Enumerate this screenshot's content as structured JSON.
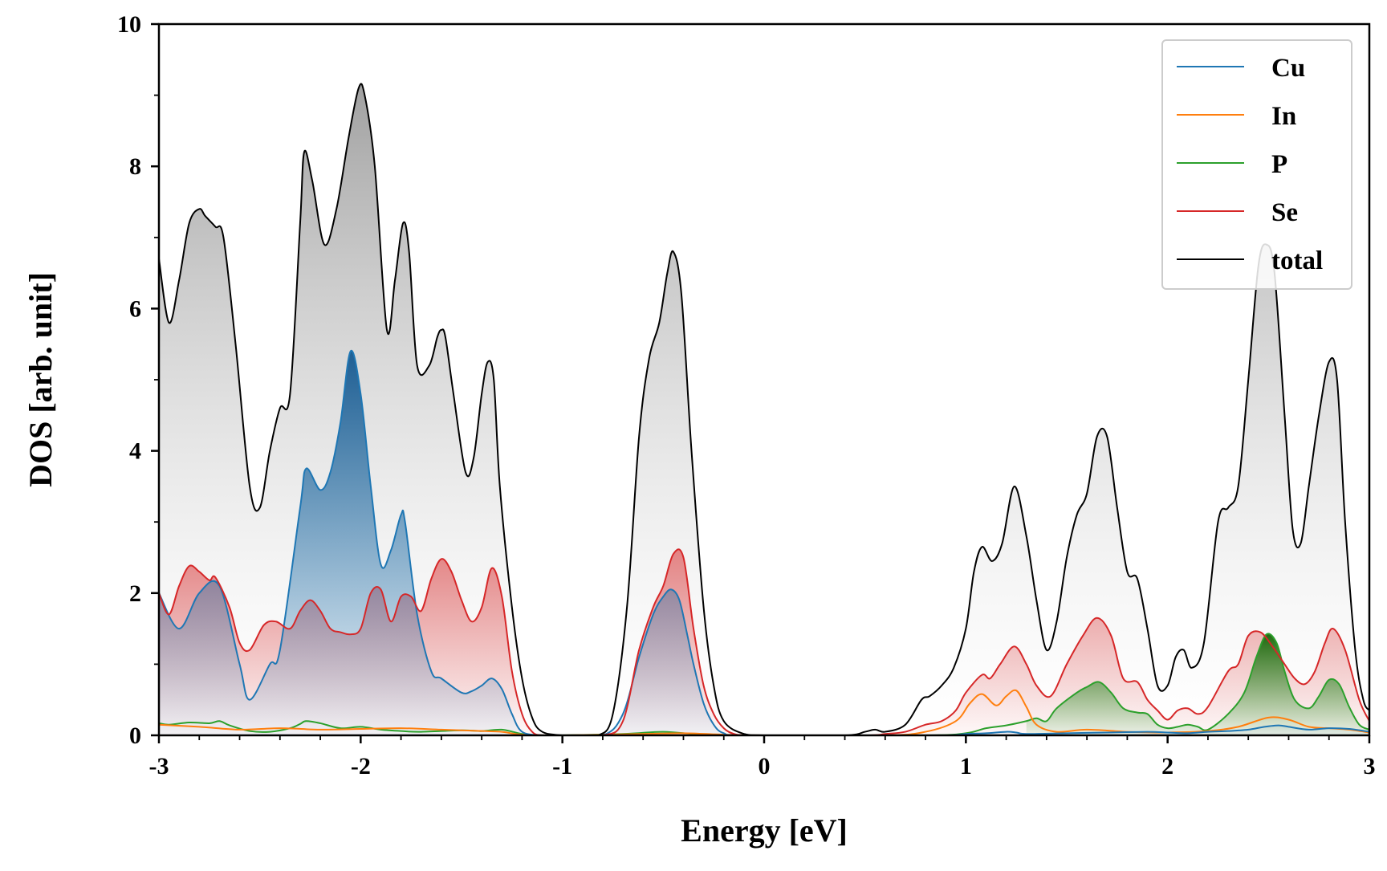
{
  "chart_data": {
    "type": "area",
    "title": "",
    "xlabel": "Energy [eV]",
    "ylabel": "DOS [arb. unit]",
    "xlim": [
      -3,
      3
    ],
    "ylim": [
      0,
      10
    ],
    "xticks": [
      -3,
      -2,
      -1,
      0,
      1,
      2,
      3
    ],
    "xtick_labels": [
      "-3",
      "-2",
      "-1",
      "0",
      "1",
      "2",
      "3"
    ],
    "yticks": [
      0,
      2,
      4,
      6,
      8,
      10
    ],
    "ytick_labels": [
      "0",
      "2",
      "4",
      "6",
      "8",
      "10"
    ],
    "legend_position": "top-right",
    "grid": false,
    "series": [
      {
        "name": "Cu",
        "color": "#1f77b4",
        "fill": true,
        "x": [
          -3.0,
          -2.9,
          -2.8,
          -2.7,
          -2.6,
          -2.55,
          -2.45,
          -2.4,
          -2.3,
          -2.27,
          -2.2,
          -2.15,
          -2.1,
          -2.05,
          -2.0,
          -1.95,
          -1.9,
          -1.85,
          -1.8,
          -1.78,
          -1.72,
          -1.65,
          -1.6,
          -1.5,
          -1.45,
          -1.4,
          -1.35,
          -1.3,
          -1.25,
          -1.2,
          -1.1,
          -1.0,
          -0.8,
          -0.7,
          -0.62,
          -0.55,
          -0.5,
          -0.46,
          -0.42,
          -0.38,
          -0.35,
          -0.3,
          -0.25,
          -0.2,
          -0.1,
          0.5,
          0.9,
          1.0,
          1.1,
          1.2,
          1.25,
          1.3,
          1.5,
          1.7,
          1.9,
          2.0,
          2.1,
          2.2,
          2.3,
          2.4,
          2.48,
          2.55,
          2.6,
          2.7,
          2.8,
          2.9,
          3.0
        ],
        "y": [
          2.0,
          1.5,
          2.0,
          2.1,
          1.0,
          0.5,
          1.0,
          1.2,
          3.2,
          3.75,
          3.45,
          3.7,
          4.4,
          5.4,
          4.8,
          3.5,
          2.4,
          2.6,
          3.1,
          3.0,
          1.7,
          0.9,
          0.8,
          0.6,
          0.62,
          0.7,
          0.8,
          0.65,
          0.3,
          0.05,
          0.0,
          0.0,
          0.0,
          0.3,
          1.1,
          1.7,
          1.95,
          2.05,
          1.9,
          1.4,
          1.0,
          0.45,
          0.15,
          0.03,
          0.0,
          0.0,
          0.0,
          0.02,
          0.03,
          0.05,
          0.04,
          0.02,
          0.03,
          0.04,
          0.05,
          0.04,
          0.03,
          0.05,
          0.06,
          0.08,
          0.12,
          0.14,
          0.12,
          0.08,
          0.1,
          0.09,
          0.05
        ]
      },
      {
        "name": "In",
        "color": "#ff7f0e",
        "fill": false,
        "x": [
          -3.0,
          -2.8,
          -2.6,
          -2.4,
          -2.2,
          -2.0,
          -1.8,
          -1.6,
          -1.4,
          -1.3,
          -1.2,
          -1.0,
          -0.6,
          -0.4,
          -0.2,
          0.0,
          0.6,
          0.8,
          0.95,
          1.02,
          1.08,
          1.15,
          1.2,
          1.25,
          1.3,
          1.35,
          1.45,
          1.6,
          1.8,
          2.0,
          2.2,
          2.35,
          2.5,
          2.6,
          2.7,
          2.8,
          2.9,
          3.0
        ],
        "y": [
          0.15,
          0.12,
          0.08,
          0.1,
          0.08,
          0.09,
          0.1,
          0.08,
          0.06,
          0.05,
          0.01,
          0.0,
          0.02,
          0.03,
          0.01,
          0.0,
          0.0,
          0.05,
          0.2,
          0.45,
          0.58,
          0.42,
          0.55,
          0.63,
          0.4,
          0.15,
          0.05,
          0.08,
          0.05,
          0.04,
          0.06,
          0.12,
          0.25,
          0.22,
          0.12,
          0.1,
          0.08,
          0.04
        ]
      },
      {
        "name": "P",
        "color": "#2ca02c",
        "fill": true,
        "fill_range": [
          1.3,
          3.0
        ],
        "x": [
          -3.0,
          -2.95,
          -2.85,
          -2.75,
          -2.7,
          -2.65,
          -2.55,
          -2.45,
          -2.35,
          -2.3,
          -2.27,
          -2.2,
          -2.1,
          -2.0,
          -1.9,
          -1.8,
          -1.7,
          -1.5,
          -1.4,
          -1.3,
          -1.2,
          -1.1,
          -0.7,
          -0.5,
          -0.3,
          0.0,
          0.8,
          1.0,
          1.1,
          1.2,
          1.3,
          1.35,
          1.4,
          1.45,
          1.55,
          1.6,
          1.66,
          1.72,
          1.78,
          1.85,
          1.9,
          1.95,
          2.0,
          2.05,
          2.1,
          2.15,
          2.2,
          2.3,
          2.38,
          2.44,
          2.49,
          2.54,
          2.58,
          2.63,
          2.7,
          2.75,
          2.8,
          2.85,
          2.9,
          2.95,
          3.0
        ],
        "y": [
          0.17,
          0.15,
          0.18,
          0.17,
          0.2,
          0.14,
          0.06,
          0.05,
          0.1,
          0.16,
          0.2,
          0.17,
          0.1,
          0.12,
          0.08,
          0.06,
          0.05,
          0.07,
          0.06,
          0.08,
          0.02,
          0.0,
          0.02,
          0.05,
          0.01,
          0.0,
          0.0,
          0.03,
          0.1,
          0.14,
          0.2,
          0.24,
          0.2,
          0.38,
          0.6,
          0.68,
          0.75,
          0.6,
          0.38,
          0.32,
          0.3,
          0.15,
          0.1,
          0.12,
          0.15,
          0.12,
          0.08,
          0.3,
          0.6,
          1.1,
          1.42,
          1.3,
          0.9,
          0.5,
          0.38,
          0.55,
          0.78,
          0.72,
          0.4,
          0.15,
          0.08
        ]
      },
      {
        "name": "Se",
        "color": "#d62728",
        "fill": true,
        "x": [
          -3.0,
          -2.95,
          -2.9,
          -2.85,
          -2.8,
          -2.75,
          -2.72,
          -2.65,
          -2.6,
          -2.55,
          -2.48,
          -2.42,
          -2.35,
          -2.3,
          -2.25,
          -2.2,
          -2.15,
          -2.1,
          -2.05,
          -2.0,
          -1.95,
          -1.9,
          -1.85,
          -1.8,
          -1.75,
          -1.7,
          -1.65,
          -1.6,
          -1.55,
          -1.5,
          -1.45,
          -1.4,
          -1.35,
          -1.3,
          -1.25,
          -1.2,
          -1.15,
          -1.1,
          -1.0,
          -0.8,
          -0.7,
          -0.62,
          -0.55,
          -0.5,
          -0.45,
          -0.4,
          -0.35,
          -0.3,
          -0.25,
          -0.2,
          -0.15,
          -0.1,
          0.0,
          0.5,
          0.6,
          0.7,
          0.8,
          0.88,
          0.95,
          1.0,
          1.08,
          1.12,
          1.17,
          1.24,
          1.3,
          1.35,
          1.42,
          1.5,
          1.58,
          1.65,
          1.72,
          1.78,
          1.85,
          1.9,
          1.95,
          2.0,
          2.05,
          2.1,
          2.15,
          2.2,
          2.3,
          2.35,
          2.4,
          2.46,
          2.52,
          2.58,
          2.63,
          2.68,
          2.73,
          2.78,
          2.82,
          2.88,
          2.95,
          3.0
        ],
        "y": [
          2.0,
          1.7,
          2.1,
          2.38,
          2.3,
          2.18,
          2.22,
          1.8,
          1.3,
          1.2,
          1.55,
          1.6,
          1.5,
          1.75,
          1.9,
          1.75,
          1.5,
          1.45,
          1.42,
          1.5,
          2.0,
          2.05,
          1.6,
          1.95,
          1.95,
          1.75,
          2.2,
          2.48,
          2.3,
          1.9,
          1.6,
          1.8,
          2.35,
          1.95,
          0.9,
          0.3,
          0.05,
          0.0,
          0.0,
          0.0,
          0.2,
          1.2,
          1.8,
          2.1,
          2.55,
          2.5,
          1.5,
          0.7,
          0.3,
          0.1,
          0.02,
          0.0,
          0.0,
          0.0,
          0.02,
          0.05,
          0.15,
          0.2,
          0.35,
          0.6,
          0.85,
          0.8,
          1.0,
          1.25,
          1.0,
          0.7,
          0.55,
          1.0,
          1.4,
          1.65,
          1.4,
          0.8,
          0.75,
          0.5,
          0.35,
          0.22,
          0.35,
          0.38,
          0.3,
          0.4,
          0.9,
          1.0,
          1.4,
          1.45,
          1.25,
          1.0,
          0.8,
          0.72,
          0.9,
          1.3,
          1.5,
          1.2,
          0.5,
          0.2
        ]
      },
      {
        "name": "total",
        "color": "#000000",
        "fill": true,
        "x": [
          -3.0,
          -2.95,
          -2.9,
          -2.85,
          -2.8,
          -2.77,
          -2.72,
          -2.68,
          -2.62,
          -2.55,
          -2.5,
          -2.45,
          -2.4,
          -2.35,
          -2.3,
          -2.28,
          -2.24,
          -2.18,
          -2.12,
          -2.06,
          -2.01,
          -1.98,
          -1.93,
          -1.87,
          -1.83,
          -1.79,
          -1.76,
          -1.72,
          -1.66,
          -1.62,
          -1.6,
          -1.58,
          -1.54,
          -1.48,
          -1.44,
          -1.4,
          -1.37,
          -1.34,
          -1.31,
          -1.25,
          -1.2,
          -1.15,
          -1.1,
          -1.0,
          -0.9,
          -0.82,
          -0.75,
          -0.68,
          -0.62,
          -0.57,
          -0.52,
          -0.48,
          -0.45,
          -0.41,
          -0.36,
          -0.3,
          -0.25,
          -0.2,
          -0.1,
          0.0,
          0.4,
          0.5,
          0.55,
          0.6,
          0.7,
          0.78,
          0.82,
          0.88,
          0.94,
          1.0,
          1.04,
          1.08,
          1.13,
          1.18,
          1.24,
          1.3,
          1.35,
          1.4,
          1.45,
          1.5,
          1.55,
          1.6,
          1.65,
          1.7,
          1.75,
          1.8,
          1.85,
          1.9,
          1.95,
          2.0,
          2.04,
          2.08,
          2.12,
          2.18,
          2.25,
          2.3,
          2.35,
          2.4,
          2.45,
          2.49,
          2.53,
          2.58,
          2.62,
          2.66,
          2.7,
          2.75,
          2.8,
          2.84,
          2.88,
          2.93,
          2.97,
          3.0
        ],
        "y": [
          6.7,
          5.8,
          6.4,
          7.2,
          7.4,
          7.3,
          7.15,
          7.0,
          5.5,
          3.5,
          3.2,
          4.0,
          4.6,
          4.8,
          7.2,
          8.2,
          7.8,
          6.9,
          7.4,
          8.4,
          9.1,
          9.0,
          8.0,
          5.7,
          6.4,
          7.2,
          6.8,
          5.2,
          5.2,
          5.6,
          5.7,
          5.6,
          4.8,
          3.7,
          3.9,
          4.8,
          5.25,
          5.0,
          3.5,
          1.8,
          0.8,
          0.25,
          0.05,
          0.0,
          0.0,
          0.0,
          0.3,
          1.8,
          4.2,
          5.3,
          5.8,
          6.5,
          6.8,
          6.2,
          4.0,
          1.8,
          0.7,
          0.2,
          0.02,
          0.0,
          0.0,
          0.05,
          0.08,
          0.05,
          0.15,
          0.5,
          0.55,
          0.7,
          0.95,
          1.5,
          2.3,
          2.65,
          2.45,
          2.7,
          3.5,
          2.8,
          1.9,
          1.2,
          1.6,
          2.5,
          3.1,
          3.4,
          4.2,
          4.2,
          3.2,
          2.3,
          2.2,
          1.5,
          0.7,
          0.7,
          1.1,
          1.2,
          0.95,
          1.3,
          3.0,
          3.2,
          3.5,
          5.0,
          6.6,
          6.9,
          6.5,
          4.5,
          2.9,
          2.7,
          3.5,
          4.5,
          5.25,
          5.0,
          3.0,
          1.2,
          0.5,
          0.35
        ]
      }
    ]
  }
}
